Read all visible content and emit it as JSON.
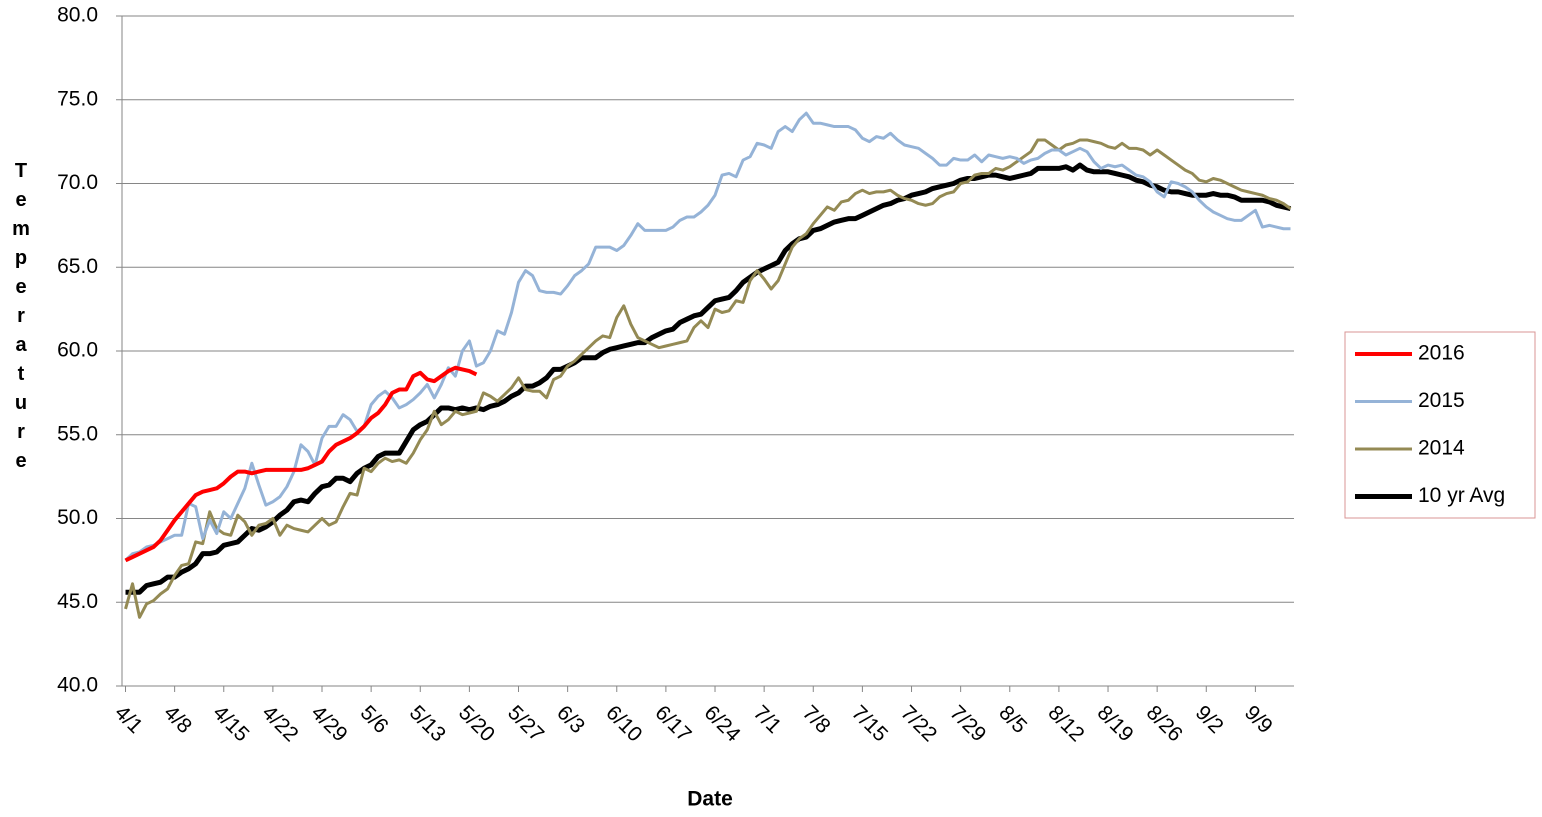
{
  "chart_data": {
    "type": "line",
    "x_label": "Date",
    "y_label": "Temperature",
    "categories": [
      "4/1",
      null,
      null,
      null,
      null,
      null,
      null,
      "4/8",
      null,
      null,
      null,
      null,
      null,
      null,
      "4/15",
      null,
      null,
      null,
      null,
      null,
      null,
      "4/22",
      null,
      null,
      null,
      null,
      null,
      null,
      "4/29",
      null,
      null,
      null,
      null,
      null,
      null,
      "5/6",
      null,
      null,
      null,
      null,
      null,
      null,
      "5/13",
      null,
      null,
      null,
      null,
      null,
      null,
      "5/20",
      null,
      null,
      null,
      null,
      null,
      null,
      "5/27",
      null,
      null,
      null,
      null,
      null,
      null,
      "6/3",
      null,
      null,
      null,
      null,
      null,
      null,
      "6/10",
      null,
      null,
      null,
      null,
      null,
      null,
      "6/17",
      null,
      null,
      null,
      null,
      null,
      null,
      "6/24",
      null,
      null,
      null,
      null,
      null,
      null,
      "7/1",
      null,
      null,
      null,
      null,
      null,
      null,
      "7/8",
      null,
      null,
      null,
      null,
      null,
      null,
      "7/15",
      null,
      null,
      null,
      null,
      null,
      null,
      "7/22",
      null,
      null,
      null,
      null,
      null,
      null,
      "7/29",
      null,
      null,
      null,
      null,
      null,
      null,
      "8/5",
      null,
      null,
      null,
      null,
      null,
      null,
      "8/12",
      null,
      null,
      null,
      null,
      null,
      null,
      "8/19",
      null,
      null,
      null,
      null,
      null,
      null,
      "8/26",
      null,
      null,
      null,
      null,
      null,
      null,
      "9/2",
      null,
      null,
      null,
      null,
      null,
      null,
      "9/9",
      null,
      null,
      null,
      null,
      null
    ],
    "series": [
      {
        "name": "2016",
        "color": "#ff0000",
        "width": 4,
        "values": [
          47.5,
          47.7,
          47.9,
          48.1,
          48.3,
          48.7,
          49.3,
          49.9,
          50.4,
          50.9,
          51.4,
          51.6,
          51.7,
          51.8,
          52.1,
          52.5,
          52.8,
          52.8,
          52.7,
          52.8,
          52.9,
          52.9,
          52.9,
          52.9,
          52.9,
          52.9,
          53.0,
          53.2,
          53.4,
          54.0,
          54.4,
          54.6,
          54.8,
          55.1,
          55.5,
          56.0,
          56.3,
          56.8,
          57.5,
          57.7,
          57.7,
          58.5,
          58.7,
          58.3,
          58.2,
          58.5,
          58.8,
          59.0,
          58.9,
          58.8,
          58.6,
          null,
          null,
          null,
          null,
          null,
          null,
          null,
          null,
          null,
          null,
          null,
          null,
          null,
          null,
          null,
          null,
          null,
          null,
          null,
          null,
          null,
          null,
          null,
          null,
          null,
          null,
          null,
          null,
          null,
          null,
          null,
          null,
          null,
          null,
          null,
          null,
          null,
          null,
          null,
          null,
          null,
          null,
          null,
          null,
          null,
          null,
          null,
          null,
          null,
          null,
          null,
          null,
          null,
          null,
          null,
          null,
          null,
          null,
          null,
          null,
          null,
          null,
          null,
          null,
          null,
          null,
          null,
          null,
          null,
          null,
          null,
          null,
          null,
          null,
          null,
          null,
          null,
          null,
          null,
          null,
          null,
          null,
          null,
          null,
          null,
          null,
          null,
          null,
          null,
          null,
          null,
          null,
          null,
          null,
          null,
          null,
          null,
          null,
          null,
          null,
          null,
          null,
          null,
          null,
          null,
          null,
          null,
          null,
          null,
          null,
          null,
          null,
          null,
          null,
          null,
          null
        ]
      },
      {
        "name": "2015",
        "color": "#95b3d7",
        "width": 3,
        "values": [
          47.5,
          47.9,
          48.0,
          48.3,
          48.4,
          48.6,
          48.8,
          49.0,
          49.0,
          50.9,
          50.7,
          48.8,
          49.9,
          49.1,
          50.4,
          50.0,
          50.9,
          51.8,
          53.3,
          52.0,
          50.8,
          51.0,
          51.3,
          51.9,
          52.8,
          54.4,
          54.0,
          53.2,
          54.8,
          55.5,
          55.5,
          56.2,
          55.9,
          55.2,
          55.5,
          56.8,
          57.3,
          57.6,
          57.2,
          56.6,
          56.8,
          57.1,
          57.5,
          58.0,
          57.2,
          58.0,
          59.0,
          58.5,
          60.0,
          60.6,
          59.1,
          59.3,
          60.0,
          61.2,
          61.0,
          62.3,
          64.1,
          64.8,
          64.5,
          63.6,
          63.5,
          63.5,
          63.4,
          63.9,
          64.5,
          64.8,
          65.2,
          66.2,
          66.2,
          66.2,
          66.0,
          66.3,
          66.9,
          67.6,
          67.2,
          67.2,
          67.2,
          67.2,
          67.4,
          67.8,
          68.0,
          68.0,
          68.3,
          68.7,
          69.3,
          70.5,
          70.6,
          70.4,
          71.4,
          71.6,
          72.4,
          72.3,
          72.1,
          73.1,
          73.4,
          73.1,
          73.8,
          74.2,
          73.6,
          73.6,
          73.5,
          73.4,
          73.4,
          73.4,
          73.2,
          72.7,
          72.5,
          72.8,
          72.7,
          73.0,
          72.6,
          72.3,
          72.2,
          72.1,
          71.8,
          71.5,
          71.1,
          71.1,
          71.5,
          71.4,
          71.4,
          71.7,
          71.3,
          71.7,
          71.6,
          71.5,
          71.6,
          71.5,
          71.2,
          71.4,
          71.5,
          71.8,
          72.0,
          72.0,
          71.7,
          71.9,
          72.1,
          71.9,
          71.3,
          70.9,
          71.1,
          71.0,
          71.1,
          70.8,
          70.5,
          70.4,
          70.1,
          69.5,
          69.2,
          70.1,
          70.0,
          69.8,
          69.5,
          69.0,
          68.6,
          68.3,
          68.1,
          67.9,
          67.8,
          67.8,
          68.1,
          68.4,
          67.4,
          67.5,
          67.4,
          67.3,
          67.3
        ]
      },
      {
        "name": "2014",
        "color": "#948a54",
        "width": 3,
        "values": [
          44.6,
          46.1,
          44.1,
          44.9,
          45.1,
          45.5,
          45.8,
          46.6,
          47.2,
          47.3,
          48.6,
          48.5,
          50.4,
          49.4,
          49.1,
          49.0,
          50.2,
          49.8,
          49.0,
          49.6,
          49.7,
          50.0,
          49.0,
          49.6,
          49.4,
          49.3,
          49.2,
          49.6,
          50.0,
          49.6,
          49.8,
          50.7,
          51.5,
          51.4,
          53.0,
          52.8,
          53.3,
          53.6,
          53.4,
          53.5,
          53.3,
          53.9,
          54.7,
          55.3,
          56.4,
          55.6,
          55.9,
          56.4,
          56.2,
          56.3,
          56.4,
          57.5,
          57.3,
          57.0,
          57.4,
          57.8,
          58.4,
          57.7,
          57.6,
          57.6,
          57.2,
          58.3,
          58.5,
          59.1,
          59.4,
          59.8,
          60.2,
          60.6,
          60.9,
          60.8,
          62.0,
          62.7,
          61.6,
          60.8,
          60.6,
          60.4,
          60.2,
          60.3,
          60.4,
          60.5,
          60.6,
          61.4,
          61.8,
          61.4,
          62.5,
          62.3,
          62.4,
          63.0,
          62.9,
          64.2,
          64.8,
          64.3,
          63.7,
          64.2,
          65.2,
          66.2,
          66.7,
          67.0,
          67.6,
          68.1,
          68.6,
          68.4,
          68.9,
          69.0,
          69.4,
          69.6,
          69.4,
          69.5,
          69.5,
          69.6,
          69.3,
          69.1,
          69.0,
          68.8,
          68.7,
          68.8,
          69.2,
          69.4,
          69.5,
          70.0,
          70.1,
          70.5,
          70.6,
          70.6,
          70.9,
          70.8,
          71.0,
          71.3,
          71.6,
          71.9,
          72.6,
          72.6,
          72.3,
          72.0,
          72.3,
          72.4,
          72.6,
          72.6,
          72.5,
          72.4,
          72.2,
          72.1,
          72.4,
          72.1,
          72.1,
          72.0,
          71.7,
          72.0,
          71.7,
          71.4,
          71.1,
          70.8,
          70.6,
          70.2,
          70.1,
          70.3,
          70.2,
          70.0,
          69.8,
          69.6,
          69.5,
          69.4,
          69.3,
          69.1,
          69.0,
          68.8,
          68.5
        ]
      },
      {
        "name": "10 yr Avg",
        "color": "#000000",
        "width": 5,
        "values": [
          45.6,
          45.6,
          45.6,
          46.0,
          46.1,
          46.2,
          46.5,
          46.5,
          46.8,
          47.0,
          47.3,
          47.9,
          47.9,
          48.0,
          48.4,
          48.5,
          48.6,
          49.0,
          49.4,
          49.3,
          49.5,
          49.8,
          50.2,
          50.5,
          51.0,
          51.1,
          51.0,
          51.5,
          51.9,
          52.0,
          52.4,
          52.4,
          52.2,
          52.7,
          53.0,
          53.2,
          53.7,
          53.9,
          53.9,
          53.9,
          54.6,
          55.3,
          55.6,
          55.8,
          56.2,
          56.6,
          56.6,
          56.5,
          56.6,
          56.5,
          56.6,
          56.5,
          56.7,
          56.8,
          57.0,
          57.3,
          57.5,
          57.9,
          57.9,
          58.1,
          58.4,
          58.9,
          58.9,
          59.1,
          59.3,
          59.6,
          59.6,
          59.6,
          59.9,
          60.1,
          60.2,
          60.3,
          60.4,
          60.5,
          60.5,
          60.8,
          61.0,
          61.2,
          61.3,
          61.7,
          61.9,
          62.1,
          62.2,
          62.6,
          63.0,
          63.1,
          63.2,
          63.6,
          64.1,
          64.4,
          64.7,
          64.9,
          65.1,
          65.3,
          66.0,
          66.4,
          66.7,
          66.8,
          67.2,
          67.3,
          67.5,
          67.7,
          67.8,
          67.9,
          67.9,
          68.1,
          68.3,
          68.5,
          68.7,
          68.8,
          69.0,
          69.1,
          69.3,
          69.4,
          69.5,
          69.7,
          69.8,
          69.9,
          70.0,
          70.2,
          70.3,
          70.3,
          70.4,
          70.5,
          70.5,
          70.4,
          70.3,
          70.4,
          70.5,
          70.6,
          70.9,
          70.9,
          70.9,
          70.9,
          71.0,
          70.8,
          71.1,
          70.8,
          70.7,
          70.7,
          70.7,
          70.6,
          70.5,
          70.4,
          70.2,
          70.1,
          69.9,
          69.8,
          69.6,
          69.5,
          69.5,
          69.4,
          69.3,
          69.3,
          69.3,
          69.4,
          69.3,
          69.3,
          69.2,
          69.0,
          69.0,
          69.0,
          69.0,
          68.9,
          68.7,
          68.6,
          68.5
        ]
      }
    ],
    "ylim": [
      40,
      80
    ],
    "yticks": [
      {
        "value": 40,
        "label": "40.0"
      },
      {
        "value": 45,
        "label": "45.0"
      },
      {
        "value": 50,
        "label": "50.0"
      },
      {
        "value": 55,
        "label": "55.0"
      },
      {
        "value": 60,
        "label": "60.0"
      },
      {
        "value": 65,
        "label": "65.0"
      },
      {
        "value": 70,
        "label": "70.0"
      },
      {
        "value": 75,
        "label": "75.0"
      },
      {
        "value": 80,
        "label": "80.0"
      }
    ],
    "grid": true,
    "legend": "right"
  }
}
